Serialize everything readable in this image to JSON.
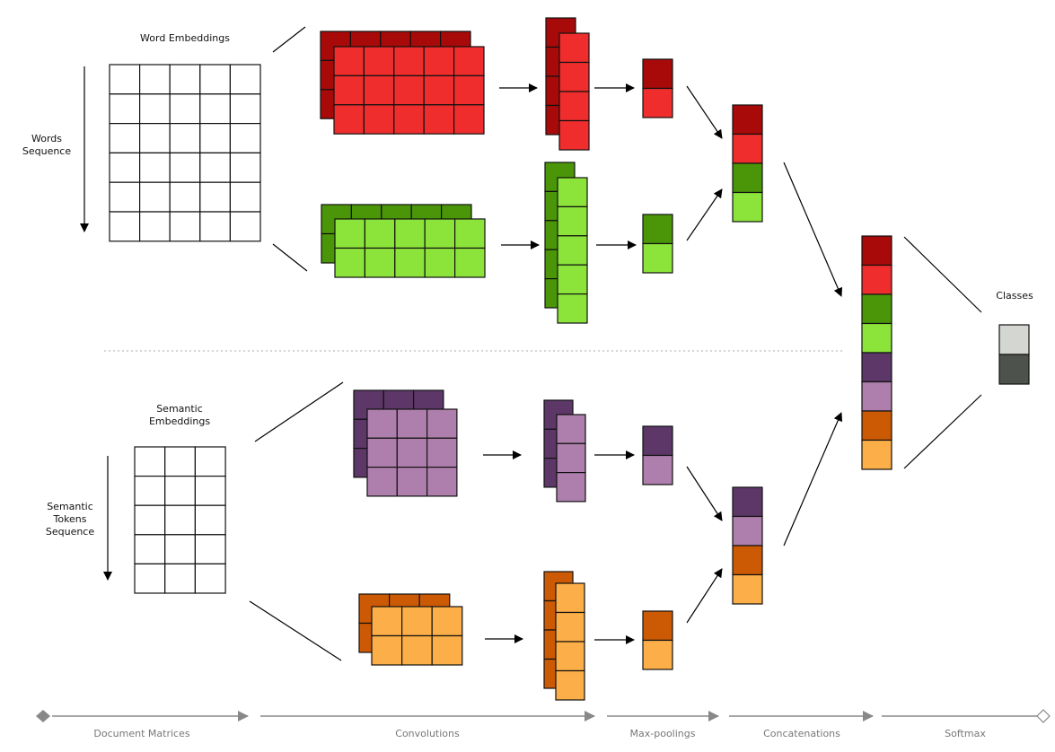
{
  "colors": {
    "dark_red": "#a80a0a",
    "red": "#ef2d2d",
    "dark_green": "#4a9608",
    "light_green": "#8ce43a",
    "dark_purple": "#5c3768",
    "light_purple": "#ae7fac",
    "dark_orange": "#cc5a04",
    "light_orange": "#fcae48",
    "class_light": "#d4d6d2",
    "class_dark": "#4e524d",
    "grid_stroke": "#111111",
    "stage_line": "#888888"
  },
  "labels": {
    "word_embeddings": "Word Embeddings",
    "words_sequence": [
      "Words",
      "Sequence"
    ],
    "semantic_embeddings": [
      "Semantic",
      "Embeddings"
    ],
    "semantic_tokens_sequence": [
      "Semantic",
      "Tokens",
      "Sequence"
    ],
    "classes": "Classes"
  },
  "stages": [
    "Document Matrices",
    "Convolutions",
    "Max-poolings",
    "Concatenations",
    "Softmax"
  ]
}
